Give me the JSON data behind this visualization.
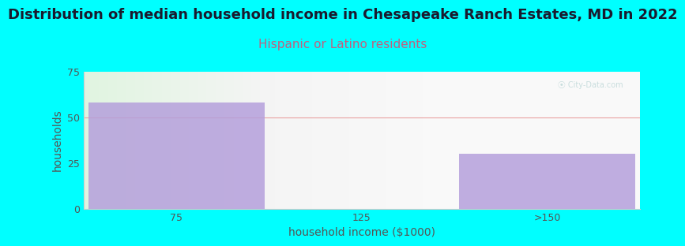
{
  "title": "Distribution of median household income in Chesapeake Ranch Estates, MD in 2022",
  "subtitle": "Hispanic or Latino residents",
  "categories": [
    "75",
    "125",
    ">150"
  ],
  "values": [
    58,
    0,
    30
  ],
  "bar_color": "#b39ddb",
  "background_color": "#00FFFF",
  "ylabel": "households",
  "xlabel": "household income ($1000)",
  "ylim": [
    0,
    75
  ],
  "yticks": [
    0,
    25,
    50,
    75
  ],
  "title_color": "#1a1a2e",
  "subtitle_color": "#c06080",
  "grid_color": "#e8a0a0",
  "title_fontsize": 13,
  "subtitle_fontsize": 11,
  "axis_label_fontsize": 10,
  "tick_fontsize": 9
}
